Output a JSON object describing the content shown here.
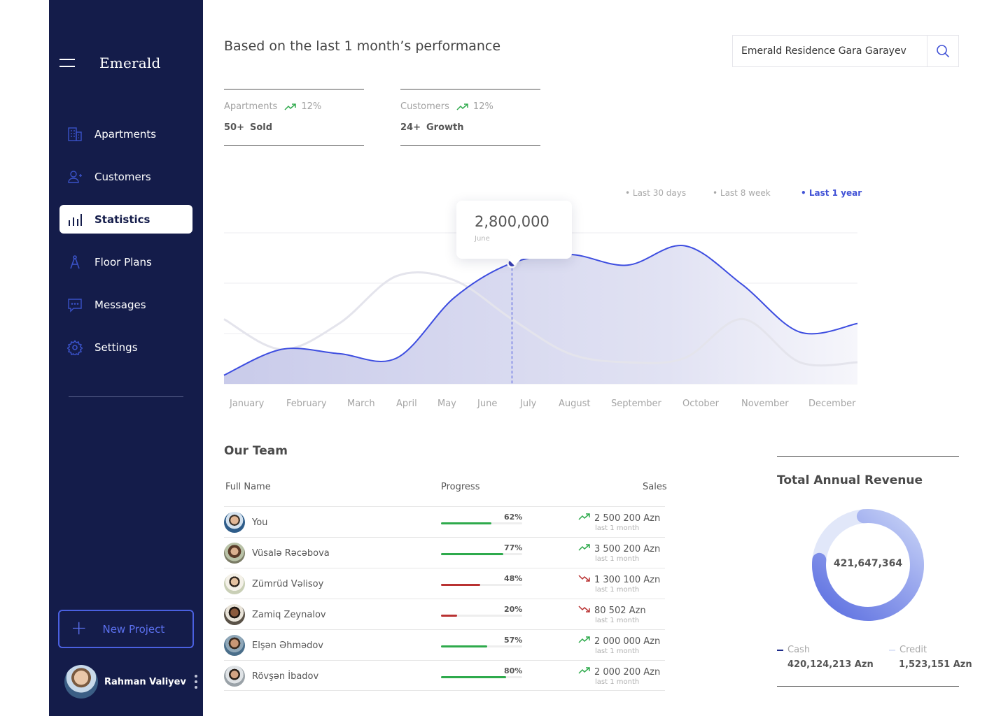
{
  "sidebar": {
    "brand": "Emerald",
    "items": [
      {
        "label": "Apartments",
        "icon": "building-icon"
      },
      {
        "label": "Customers",
        "icon": "add-user-icon"
      },
      {
        "label": "Statistics",
        "icon": "bar-chart-icon",
        "active": true
      },
      {
        "label": "Floor Plans",
        "icon": "compass-icon"
      },
      {
        "label": "Messages",
        "icon": "chat-icon"
      },
      {
        "label": "Settings",
        "icon": "gear-icon"
      }
    ],
    "new_project_label": "New Project",
    "user_name": "Rahman Valiyev"
  },
  "header": {
    "headline": "Based on the last 1 month’s performance",
    "search_value": "Emerald Residence Gara Garayev"
  },
  "kpis": [
    {
      "label": "Apartments",
      "trend": "12%",
      "value": "50+",
      "unit": "Sold"
    },
    {
      "label": "Customers",
      "trend": "12%",
      "value": "24+",
      "unit": "Growth"
    }
  ],
  "ranges": [
    "• Last 30 days",
    "• Last 8 week",
    "• Last 1 year"
  ],
  "tooltip": {
    "value": "2,800,000",
    "label": "June"
  },
  "chart_data": {
    "type": "area",
    "categories": [
      "January",
      "February",
      "March",
      "April",
      "May",
      "June",
      "July",
      "August",
      "September",
      "October",
      "November",
      "December"
    ],
    "series": [
      {
        "values": [
          0.2,
          0.8,
          0.7,
          0.6,
          2.0,
          2.8,
          3.0,
          2.75,
          3.2,
          2.3,
          1.2,
          1.4
        ],
        "color": "#3d4de0"
      },
      {
        "values": [
          1.5,
          0.8,
          1.4,
          2.5,
          2.4,
          1.5,
          0.7,
          0.5,
          0.6,
          1.5,
          0.5,
          0.5
        ],
        "color": "#e4e4ec"
      }
    ],
    "highlight_index": 5,
    "grid": true,
    "colors": {
      "line": "#3d4de0",
      "area": "#d4d5ee",
      "secondary": "#e4e4ec"
    }
  },
  "team": {
    "title": "Our Team",
    "headers": {
      "name": "Full Name",
      "progress": "Progress",
      "sales": "Sales"
    },
    "rows": [
      {
        "name": "You",
        "progress": 62,
        "pct": "62%",
        "amount": "2 500 200 Azn",
        "period": "last 1 month",
        "trend": "up"
      },
      {
        "name": "Vüsalə Rəcəbova",
        "progress": 77,
        "pct": "77%",
        "amount": "3 500 200 Azn",
        "period": "last 1 month",
        "trend": "up"
      },
      {
        "name": "Zümrüd Vəlisoy",
        "progress": 48,
        "pct": "48%",
        "amount": "1 300 100 Azn",
        "period": "last 1 month",
        "trend": "down"
      },
      {
        "name": "Zamiq Zeynalov",
        "progress": 20,
        "pct": "20%",
        "amount": "80 502 Azn",
        "period": "last 1 month",
        "trend": "down"
      },
      {
        "name": "Elşən Əhmədov",
        "progress": 57,
        "pct": "57%",
        "amount": "2 000 000 Azn",
        "period": "last 1 month",
        "trend": "up"
      },
      {
        "name": "Rövşən İbadov",
        "progress": 80,
        "pct": "80%",
        "amount": "2 000 200 Azn",
        "period": "last 1 month",
        "trend": "up"
      }
    ]
  },
  "revenue": {
    "title": "Total Annual Revenue",
    "total": "421,647,364",
    "cash_label": "Cash",
    "cash_value": "420,124,213 Azn",
    "credit_label": "Credit",
    "credit_value": "1,523,151 Azn",
    "colors": {
      "cash": "#5566dd",
      "credit": "#dfe5f8"
    }
  },
  "colors": {
    "sidebar": "#141c4a",
    "accent": "#4152d6",
    "up": "#2eaa4c",
    "down": "#b93232"
  }
}
